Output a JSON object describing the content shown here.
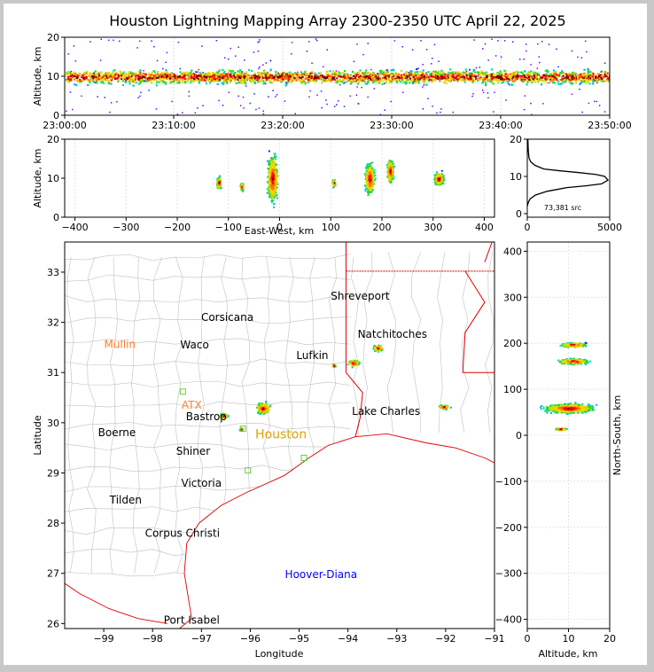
{
  "title": "Houston Lightning Mapping Array 2300-2350 UTC April 22, 2025",
  "colors": {
    "boundary_county": "#c0c0c0",
    "boundary_state": "#e00000",
    "coast": "#e00000",
    "city_label": "#000000",
    "orange_label": "#ff8030",
    "gold_label": "#e0a000",
    "blue_label": "#0000ff"
  },
  "chart_data": [
    {
      "id": "time-height",
      "type": "heatmap",
      "ylabel": "Altitude, km",
      "ylim": [
        0,
        20
      ],
      "yticks": [
        "0",
        "10",
        "20"
      ],
      "xticks": [
        "23:00:00",
        "23:10:00",
        "23:20:00",
        "23:30:00",
        "23:40:00",
        "23:50:00"
      ],
      "xrange": [
        "23:00:00",
        "23:50:00"
      ],
      "source_band_km": [
        8,
        12
      ]
    },
    {
      "id": "ew-height",
      "type": "heatmap",
      "xlabel": "East-West, km",
      "ylabel": "Altitude, km",
      "xlim": [
        -420,
        420
      ],
      "ylim": [
        0,
        20
      ],
      "xticks": [
        "−400",
        "−300",
        "−200",
        "−100",
        "0",
        "100",
        "200",
        "300",
        "400"
      ],
      "yticks": [
        "0",
        "10",
        "20"
      ],
      "clusters": [
        {
          "x": -120,
          "alt": 9,
          "w": 12,
          "h": 5
        },
        {
          "x": -75,
          "alt": 8,
          "w": 8,
          "h": 3
        },
        {
          "x": -15,
          "alt": 10,
          "w": 30,
          "h": 18
        },
        {
          "x": 105,
          "alt": 9,
          "w": 8,
          "h": 3
        },
        {
          "x": 175,
          "alt": 10,
          "w": 28,
          "h": 12
        },
        {
          "x": 215,
          "alt": 12,
          "w": 20,
          "h": 9
        },
        {
          "x": 310,
          "alt": 10,
          "w": 30,
          "h": 5
        }
      ]
    },
    {
      "id": "altitude-histogram",
      "type": "line",
      "xlim": [
        0,
        5000
      ],
      "ylim": [
        0,
        20
      ],
      "xticks": [
        "0",
        "5000"
      ],
      "yticks": [
        "0",
        "10",
        "20"
      ],
      "annotation": "73,381 src",
      "x": [
        0,
        60,
        180,
        500,
        1200,
        2400,
        3600,
        4500,
        4900,
        4700,
        4200,
        3200,
        2000,
        1000,
        450,
        200,
        100,
        60,
        40
      ],
      "y": [
        2,
        3,
        4,
        5,
        6,
        7,
        7.5,
        8,
        9,
        10,
        10.5,
        11,
        11.5,
        12,
        13,
        14,
        15,
        17,
        20
      ]
    },
    {
      "id": "plan-view",
      "type": "heatmap",
      "xlabel": "Longitude",
      "ylabel": "Latitude",
      "xlim": [
        -99.8,
        -91.0
      ],
      "ylim": [
        25.9,
        33.6
      ],
      "xticks": [
        "−99",
        "−98",
        "−97",
        "−96",
        "−95",
        "−94",
        "−93",
        "−92",
        "−91"
      ],
      "yticks": [
        "26",
        "27",
        "28",
        "29",
        "30",
        "31",
        "32",
        "33"
      ],
      "cities": [
        {
          "name": "Shreveport",
          "lon": -93.75,
          "lat": 32.52,
          "style": "black"
        },
        {
          "name": "Corsicana",
          "lon": -96.47,
          "lat": 32.1,
          "style": "black"
        },
        {
          "name": "Mullin",
          "lon": -98.67,
          "lat": 31.56,
          "style": "orange"
        },
        {
          "name": "Waco",
          "lon": -97.14,
          "lat": 31.55,
          "style": "black"
        },
        {
          "name": "Natchitoches",
          "lon": -93.09,
          "lat": 31.76,
          "style": "black"
        },
        {
          "name": "Lufkin",
          "lon": -94.73,
          "lat": 31.34,
          "style": "black"
        },
        {
          "name": "ATX",
          "lon": -97.2,
          "lat": 30.35,
          "style": "orange"
        },
        {
          "name": "Bastrop",
          "lon": -96.9,
          "lat": 30.12,
          "style": "black"
        },
        {
          "name": "Lake Charles",
          "lon": -93.22,
          "lat": 30.23,
          "style": "black"
        },
        {
          "name": "Houston",
          "lon": -95.37,
          "lat": 29.76,
          "style": "gold"
        },
        {
          "name": "Boerne",
          "lon": -98.73,
          "lat": 29.8,
          "style": "black"
        },
        {
          "name": "Shiner",
          "lon": -97.17,
          "lat": 29.43,
          "style": "black"
        },
        {
          "name": "Victoria",
          "lon": -97.0,
          "lat": 28.8,
          "style": "black"
        },
        {
          "name": "Tilden",
          "lon": -98.55,
          "lat": 28.46,
          "style": "black"
        },
        {
          "name": "Corpus Christi",
          "lon": -97.39,
          "lat": 27.8,
          "style": "black"
        },
        {
          "name": "Hoover-Diana",
          "lon": -94.55,
          "lat": 26.98,
          "style": "blue"
        },
        {
          "name": "Port Isabel",
          "lon": -97.2,
          "lat": 26.07,
          "style": "black"
        }
      ],
      "clusters": [
        {
          "lon": -95.75,
          "lat": 30.3,
          "w": 0.45,
          "h": 0.35
        },
        {
          "lon": -96.55,
          "lat": 30.15,
          "w": 0.25,
          "h": 0.15
        },
        {
          "lon": -93.9,
          "lat": 31.2,
          "w": 0.35,
          "h": 0.2
        },
        {
          "lon": -93.4,
          "lat": 31.5,
          "w": 0.3,
          "h": 0.18
        },
        {
          "lon": -92.05,
          "lat": 30.33,
          "w": 0.35,
          "h": 0.12
        },
        {
          "lon": -96.2,
          "lat": 29.88,
          "w": 0.1,
          "h": 0.08
        },
        {
          "lon": -94.3,
          "lat": 31.15,
          "w": 0.1,
          "h": 0.08
        }
      ]
    },
    {
      "id": "ns-height",
      "type": "heatmap",
      "xlabel": "Altitude, km",
      "ylabel": "North-South, km",
      "xlim": [
        0,
        20
      ],
      "ylim": [
        -420,
        420
      ],
      "xticks": [
        "0",
        "10",
        "20"
      ],
      "yticks": [
        "−400",
        "−300",
        "−200",
        "−100",
        "0",
        "100",
        "200",
        "300",
        "400"
      ],
      "clusters": [
        {
          "alt": 11,
          "y": 198,
          "w": 9,
          "h": 14
        },
        {
          "alt": 11,
          "y": 162,
          "w": 11,
          "h": 17
        },
        {
          "alt": 10,
          "y": 60,
          "w": 18,
          "h": 30
        },
        {
          "alt": 8,
          "y": 15,
          "w": 4,
          "h": 6
        }
      ]
    }
  ]
}
